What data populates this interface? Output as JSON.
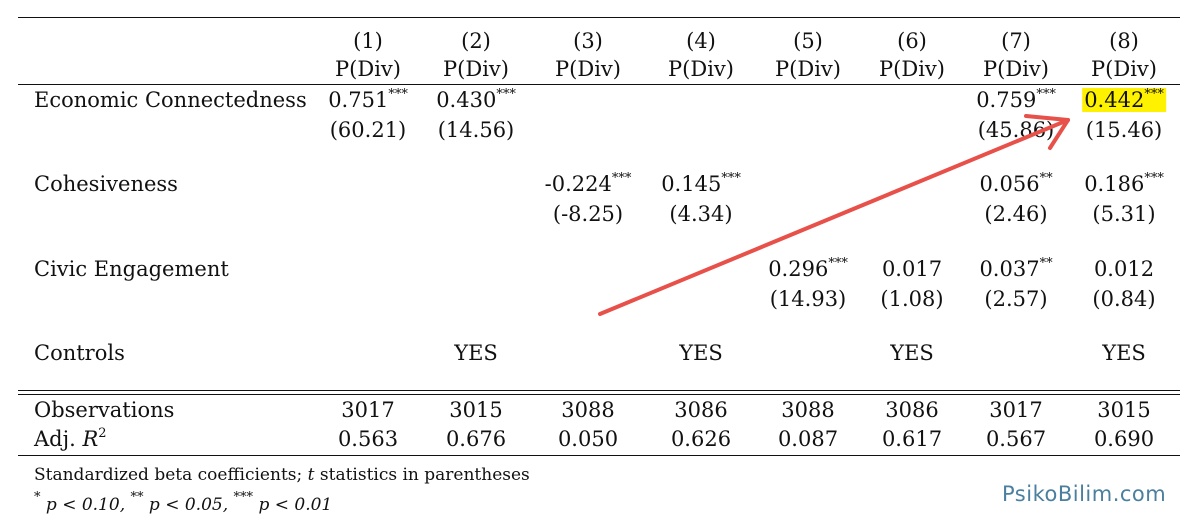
{
  "columns": [
    {
      "num": "(1)",
      "dep": "P(Div)"
    },
    {
      "num": "(2)",
      "dep": "P(Div)"
    },
    {
      "num": "(3)",
      "dep": "P(Div)"
    },
    {
      "num": "(4)",
      "dep": "P(Div)"
    },
    {
      "num": "(5)",
      "dep": "P(Div)"
    },
    {
      "num": "(6)",
      "dep": "P(Div)"
    },
    {
      "num": "(7)",
      "dep": "P(Div)"
    },
    {
      "num": "(8)",
      "dep": "P(Div)"
    }
  ],
  "rows": {
    "econ": {
      "label": "Economic Connectedness",
      "c1": {
        "coef": "0.751",
        "stars": "***",
        "t": "(60.21)"
      },
      "c2": {
        "coef": "0.430",
        "stars": "***",
        "t": "(14.56)"
      },
      "c7": {
        "coef": "0.759",
        "stars": "***",
        "t": "(45.86)"
      },
      "c8": {
        "coef": "0.442",
        "stars": "***",
        "t": "(15.46)"
      }
    },
    "cohes": {
      "label": "Cohesiveness",
      "c3": {
        "coef": "-0.224",
        "stars": "***",
        "t": "(-8.25)"
      },
      "c4": {
        "coef": "0.145",
        "stars": "***",
        "t": "(4.34)"
      },
      "c7": {
        "coef": "0.056",
        "stars": "**",
        "t": "(2.46)"
      },
      "c8": {
        "coef": "0.186",
        "stars": "***",
        "t": "(5.31)"
      }
    },
    "civic": {
      "label": "Civic Engagement",
      "c5": {
        "coef": "0.296",
        "stars": "***",
        "t": "(14.93)"
      },
      "c6": {
        "coef": "0.017",
        "stars": "",
        "t": "(1.08)"
      },
      "c7": {
        "coef": "0.037",
        "stars": "**",
        "t": "(2.57)"
      },
      "c8": {
        "coef": "0.012",
        "stars": "",
        "t": "(0.84)"
      }
    },
    "controls": {
      "label": "Controls",
      "c2": "YES",
      "c4": "YES",
      "c6": "YES",
      "c8": "YES"
    }
  },
  "observations": {
    "label": "Observations",
    "values": [
      "3017",
      "3015",
      "3088",
      "3086",
      "3088",
      "3086",
      "3017",
      "3015"
    ]
  },
  "adjr2": {
    "label_prefix": "Adj.",
    "label_var": "R",
    "label_sup": "2",
    "values": [
      "0.563",
      "0.676",
      "0.050",
      "0.626",
      "0.087",
      "0.617",
      "0.567",
      "0.690"
    ]
  },
  "notes": {
    "line1_a": "Standardized beta coefficients;",
    "line1_var": "t",
    "line1_b": "statistics in parentheses",
    "line2": "p < 0.10,",
    "line2b": "p < 0.05,",
    "line2c": "p < 0.01",
    "star1": "*",
    "star2": "**",
    "star3": "***"
  },
  "highlight_color": "#fff200",
  "arrow_color": "#e8504a",
  "watermark": "PsikoBilim.com"
}
